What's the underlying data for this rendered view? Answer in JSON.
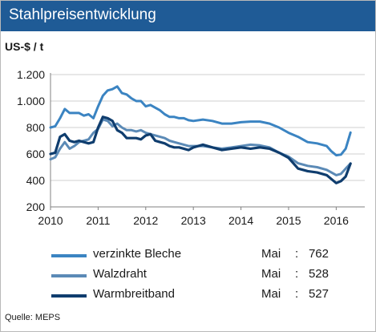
{
  "header": {
    "title": "Stahlpreisentwicklung"
  },
  "source": "Quelle:  MEPS",
  "chart_data": {
    "type": "line",
    "unit_label": "US-$ / t",
    "ylim": [
      200,
      1200
    ],
    "xlim": [
      2010,
      2016.6
    ],
    "y_ticks": [
      "1.200",
      "1.000",
      "800",
      "600",
      "400",
      "200"
    ],
    "y_tick_values": [
      1200,
      1000,
      800,
      600,
      400,
      200
    ],
    "x_ticks": [
      "2010",
      "2011",
      "2012",
      "2013",
      "2014",
      "2015",
      "2016"
    ],
    "x_tick_values": [
      2010,
      2011,
      2012,
      2013,
      2014,
      2015,
      2016
    ],
    "grid": "horizontal",
    "legend_position": "below",
    "series": [
      {
        "name": "verzinkte Bleche",
        "month": "Mai",
        "last_value": "762",
        "color": "#3b84c2",
        "x": [
          2010.0,
          2010.1,
          2010.2,
          2010.3,
          2010.4,
          2010.5,
          2010.6,
          2010.7,
          2010.8,
          2010.9,
          2011.0,
          2011.1,
          2011.2,
          2011.3,
          2011.4,
          2011.5,
          2011.6,
          2011.7,
          2011.8,
          2011.9,
          2012.0,
          2012.1,
          2012.2,
          2012.3,
          2012.4,
          2012.5,
          2012.6,
          2012.7,
          2012.8,
          2012.9,
          2013.0,
          2013.2,
          2013.4,
          2013.6,
          2013.8,
          2014.0,
          2014.2,
          2014.4,
          2014.6,
          2014.8,
          2015.0,
          2015.2,
          2015.4,
          2015.6,
          2015.8,
          2015.9,
          2016.0,
          2016.1,
          2016.2,
          2016.3
        ],
        "values": [
          800,
          810,
          870,
          940,
          910,
          910,
          910,
          890,
          900,
          870,
          960,
          1040,
          1080,
          1090,
          1110,
          1060,
          1050,
          1020,
          1000,
          1000,
          960,
          970,
          950,
          930,
          900,
          880,
          880,
          870,
          870,
          855,
          850,
          860,
          850,
          830,
          830,
          840,
          845,
          845,
          830,
          800,
          760,
          730,
          690,
          680,
          660,
          620,
          590,
          595,
          640,
          762
        ]
      },
      {
        "name": "Walzdraht",
        "month": "Mai",
        "last_value": "528",
        "color": "#5b8ab6",
        "x": [
          2010.0,
          2010.1,
          2010.2,
          2010.3,
          2010.4,
          2010.5,
          2010.6,
          2010.7,
          2010.8,
          2010.9,
          2011.0,
          2011.1,
          2011.2,
          2011.3,
          2011.4,
          2011.5,
          2011.6,
          2011.7,
          2011.8,
          2011.9,
          2012.0,
          2012.1,
          2012.2,
          2012.3,
          2012.4,
          2012.5,
          2012.6,
          2012.7,
          2012.8,
          2012.9,
          2013.0,
          2013.2,
          2013.4,
          2013.6,
          2013.8,
          2014.0,
          2014.2,
          2014.4,
          2014.6,
          2014.8,
          2015.0,
          2015.2,
          2015.4,
          2015.6,
          2015.8,
          2015.9,
          2016.0,
          2016.1,
          2016.2,
          2016.3
        ],
        "values": [
          560,
          575,
          640,
          690,
          640,
          660,
          690,
          700,
          710,
          760,
          790,
          860,
          850,
          810,
          830,
          800,
          780,
          780,
          770,
          780,
          760,
          750,
          740,
          730,
          720,
          700,
          690,
          680,
          670,
          660,
          660,
          660,
          650,
          640,
          650,
          660,
          670,
          665,
          650,
          610,
          580,
          530,
          510,
          500,
          480,
          460,
          440,
          450,
          490,
          528
        ]
      },
      {
        "name": "Warmbreitband",
        "month": "Mai",
        "last_value": "527",
        "color": "#0f3d6e",
        "x": [
          2010.0,
          2010.1,
          2010.2,
          2010.3,
          2010.4,
          2010.5,
          2010.6,
          2010.7,
          2010.8,
          2010.9,
          2011.0,
          2011.1,
          2011.2,
          2011.3,
          2011.4,
          2011.5,
          2011.6,
          2011.7,
          2011.8,
          2011.9,
          2012.0,
          2012.1,
          2012.2,
          2012.3,
          2012.4,
          2012.5,
          2012.6,
          2012.7,
          2012.8,
          2012.9,
          2013.0,
          2013.2,
          2013.4,
          2013.6,
          2013.8,
          2014.0,
          2014.2,
          2014.4,
          2014.6,
          2014.8,
          2015.0,
          2015.2,
          2015.4,
          2015.6,
          2015.8,
          2015.9,
          2016.0,
          2016.1,
          2016.2,
          2016.3
        ],
        "values": [
          600,
          610,
          730,
          750,
          700,
          690,
          700,
          690,
          680,
          690,
          800,
          880,
          870,
          850,
          780,
          760,
          720,
          720,
          720,
          710,
          740,
          750,
          700,
          690,
          680,
          660,
          650,
          650,
          640,
          630,
          650,
          670,
          650,
          630,
          640,
          650,
          640,
          650,
          640,
          610,
          570,
          490,
          470,
          460,
          440,
          410,
          380,
          395,
          430,
          527
        ]
      }
    ]
  }
}
